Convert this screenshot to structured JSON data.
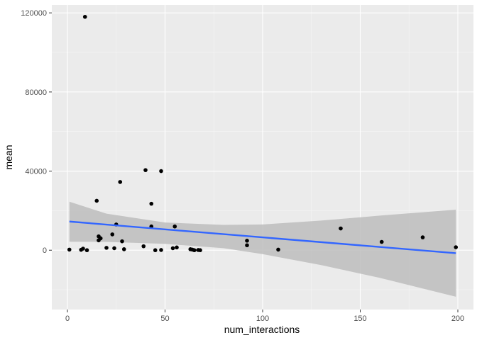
{
  "chart_data": {
    "type": "scatter",
    "title": "",
    "xlabel": "num_interactions",
    "ylabel": "mean",
    "xlim": [
      -8,
      208
    ],
    "ylim": [
      -30000,
      124000
    ],
    "x_ticks": [
      0,
      50,
      100,
      150,
      200
    ],
    "x_tick_labels": [
      "0",
      "50",
      "100",
      "150",
      "200"
    ],
    "y_ticks": [
      0,
      40000,
      80000,
      120000
    ],
    "y_tick_labels": [
      "0",
      "40000",
      "80000",
      "120000"
    ],
    "grid": true,
    "legend": "none",
    "colors": {
      "panel": "#ebebeb",
      "grid_major": "#ffffff",
      "points": "#000000",
      "smooth_line": "#3366ff",
      "confidence_band": "#bdbdbd"
    },
    "points": [
      {
        "x": 1,
        "y": 300
      },
      {
        "x": 7,
        "y": 200
      },
      {
        "x": 8,
        "y": 800
      },
      {
        "x": 9,
        "y": 118000
      },
      {
        "x": 10,
        "y": 0
      },
      {
        "x": 15,
        "y": 25000
      },
      {
        "x": 16,
        "y": 7000
      },
      {
        "x": 16,
        "y": 5000
      },
      {
        "x": 17,
        "y": 6000
      },
      {
        "x": 20,
        "y": 1200
      },
      {
        "x": 23,
        "y": 8000
      },
      {
        "x": 24,
        "y": 1000
      },
      {
        "x": 25,
        "y": 13000
      },
      {
        "x": 27,
        "y": 34500
      },
      {
        "x": 28,
        "y": 4500
      },
      {
        "x": 29,
        "y": 500
      },
      {
        "x": 39,
        "y": 2000
      },
      {
        "x": 40,
        "y": 40500
      },
      {
        "x": 43,
        "y": 23500
      },
      {
        "x": 43,
        "y": 12000
      },
      {
        "x": 45,
        "y": 0
      },
      {
        "x": 48,
        "y": 40000
      },
      {
        "x": 48,
        "y": 100
      },
      {
        "x": 54,
        "y": 1000
      },
      {
        "x": 55,
        "y": 12000
      },
      {
        "x": 56,
        "y": 1400
      },
      {
        "x": 63,
        "y": 500
      },
      {
        "x": 64,
        "y": 300
      },
      {
        "x": 65,
        "y": 0
      },
      {
        "x": 67,
        "y": 100
      },
      {
        "x": 68,
        "y": 0
      },
      {
        "x": 92,
        "y": 4800
      },
      {
        "x": 92,
        "y": 2500
      },
      {
        "x": 108,
        "y": 300
      },
      {
        "x": 140,
        "y": 11000
      },
      {
        "x": 161,
        "y": 4200
      },
      {
        "x": 182,
        "y": 6500
      },
      {
        "x": 199,
        "y": 1500
      }
    ],
    "smooth": {
      "method": "linear",
      "start": {
        "x": 1,
        "y": 14500
      },
      "end": {
        "x": 199,
        "y": -1500
      },
      "ci_upper": [
        {
          "x": 1,
          "y": 24500
        },
        {
          "x": 20,
          "y": 18500
        },
        {
          "x": 50,
          "y": 14000
        },
        {
          "x": 80,
          "y": 12800
        },
        {
          "x": 100,
          "y": 13000
        },
        {
          "x": 130,
          "y": 15000
        },
        {
          "x": 160,
          "y": 17500
        },
        {
          "x": 199,
          "y": 20500
        }
      ],
      "ci_lower": [
        {
          "x": 199,
          "y": -23500
        },
        {
          "x": 160,
          "y": -14000
        },
        {
          "x": 130,
          "y": -7500
        },
        {
          "x": 100,
          "y": -2000
        },
        {
          "x": 80,
          "y": 1000
        },
        {
          "x": 50,
          "y": 3200
        },
        {
          "x": 20,
          "y": 4200
        },
        {
          "x": 1,
          "y": 4300
        }
      ]
    }
  }
}
